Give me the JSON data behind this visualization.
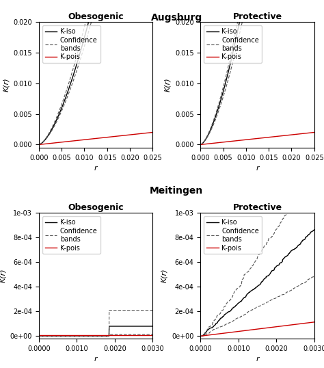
{
  "title_top": "Augsburg",
  "title_bottom": "Meitingen",
  "subplot_titles": [
    "Obesogenic",
    "Protective",
    "Obesogenic",
    "Protective"
  ],
  "xlabel": "r",
  "ylabel": "K(r)",
  "legend_labels": [
    "K-iso",
    "Confidence\nbands",
    "K-pois"
  ],
  "augsburg_xlim": [
    0,
    0.025
  ],
  "augsburg_ylim": [
    -0.0005,
    0.02
  ],
  "augsburg_xticks": [
    0.0,
    0.005,
    0.01,
    0.015,
    0.02,
    0.025
  ],
  "augsburg_yticks": [
    0.0,
    0.005,
    0.01,
    0.015,
    0.02
  ],
  "meitingen_xlim": [
    0,
    0.003
  ],
  "meitingen_ylim": [
    -2e-05,
    0.001
  ],
  "meitingen_xticks": [
    0.0,
    0.001,
    0.002,
    0.003
  ],
  "line_color_kiso": "#000000",
  "line_color_conf": "#555555",
  "line_color_kpois": "#cc0000",
  "background_color": "#ffffff"
}
